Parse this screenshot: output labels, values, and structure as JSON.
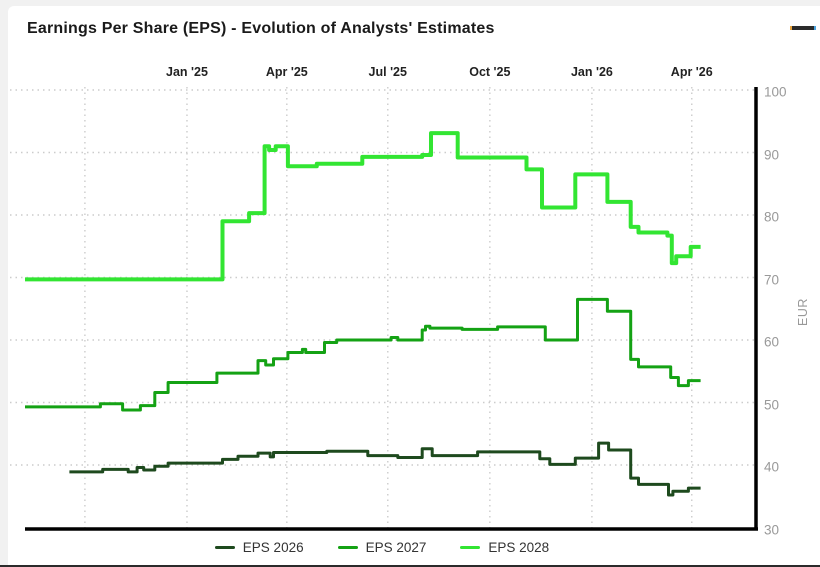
{
  "title": "Earnings Per Share (EPS) - Evolution of Analysts' Estimates",
  "menu_icon": "chart-context-menu",
  "chart_data": {
    "type": "line",
    "line_style": "step-after",
    "title": "Earnings Per Share (EPS) - Evolution of Analysts' Estimates",
    "xlabel": "",
    "ylabel": "EUR",
    "ylim": [
      30,
      100
    ],
    "grid": true,
    "legend_position": "bottom",
    "y_ticks": [
      100,
      90,
      80,
      70,
      60,
      50,
      40,
      30
    ],
    "x_start": "2024-08-08",
    "x_end": "2026-05-28",
    "x_ticks": [
      {
        "date": "2024-10-01",
        "label": ""
      },
      {
        "date": "2025-01-01",
        "label": "Jan '25"
      },
      {
        "date": "2025-04-01",
        "label": "Apr '25"
      },
      {
        "date": "2025-07-01",
        "label": "Jul '25"
      },
      {
        "date": "2025-10-01",
        "label": "Oct '25"
      },
      {
        "date": "2026-01-01",
        "label": "Jan '26"
      },
      {
        "date": "2026-04-01",
        "label": "Apr '26"
      }
    ],
    "series": [
      {
        "name": "EPS 2026",
        "color": "#1e4a1e",
        "points": [
          [
            "2024-09-17",
            38.9
          ],
          [
            "2024-10-17",
            39.3
          ],
          [
            "2024-11-09",
            38.9
          ],
          [
            "2024-11-17",
            39.6
          ],
          [
            "2024-11-23",
            39.2
          ],
          [
            "2024-12-03",
            39.8
          ],
          [
            "2024-12-15",
            40.3
          ],
          [
            "2025-02-02",
            40.9
          ],
          [
            "2025-02-16",
            41.4
          ],
          [
            "2025-03-06",
            41.9
          ],
          [
            "2025-03-17",
            41.3
          ],
          [
            "2025-03-20",
            42.0
          ],
          [
            "2025-05-07",
            42.2
          ],
          [
            "2025-06-13",
            41.5
          ],
          [
            "2025-07-10",
            41.2
          ],
          [
            "2025-08-01",
            42.6
          ],
          [
            "2025-08-10",
            41.5
          ],
          [
            "2025-09-20",
            42.1
          ],
          [
            "2025-11-15",
            41.0
          ],
          [
            "2025-11-24",
            40.1
          ],
          [
            "2025-12-17",
            41.1
          ],
          [
            "2026-01-07",
            43.5
          ],
          [
            "2026-01-16",
            42.4
          ],
          [
            "2026-02-05",
            37.9
          ],
          [
            "2026-02-12",
            36.9
          ],
          [
            "2026-03-11",
            35.2
          ],
          [
            "2026-03-15",
            35.8
          ],
          [
            "2026-03-29",
            36.3
          ],
          [
            "2026-04-09",
            36.3
          ]
        ]
      },
      {
        "name": "EPS 2027",
        "color": "#14a214",
        "points": [
          [
            "2024-08-08",
            49.3
          ],
          [
            "2024-10-15",
            49.8
          ],
          [
            "2024-11-04",
            48.8
          ],
          [
            "2024-11-20",
            49.5
          ],
          [
            "2024-12-03",
            51.6
          ],
          [
            "2024-12-15",
            53.2
          ],
          [
            "2025-01-28",
            54.7
          ],
          [
            "2025-03-06",
            56.7
          ],
          [
            "2025-03-13",
            56.0
          ],
          [
            "2025-03-20",
            57.0
          ],
          [
            "2025-04-02",
            58.0
          ],
          [
            "2025-04-15",
            58.5
          ],
          [
            "2025-04-18",
            58.0
          ],
          [
            "2025-05-05",
            59.6
          ],
          [
            "2025-05-16",
            60.0
          ],
          [
            "2025-07-04",
            60.4
          ],
          [
            "2025-07-10",
            60.0
          ],
          [
            "2025-08-01",
            61.6
          ],
          [
            "2025-08-04",
            62.2
          ],
          [
            "2025-08-08",
            61.9
          ],
          [
            "2025-09-06",
            61.7
          ],
          [
            "2025-10-08",
            62.1
          ],
          [
            "2025-11-20",
            60.0
          ],
          [
            "2025-12-19",
            66.5
          ],
          [
            "2026-01-15",
            64.6
          ],
          [
            "2026-02-05",
            56.9
          ],
          [
            "2026-02-12",
            55.7
          ],
          [
            "2026-03-13",
            54.0
          ],
          [
            "2026-03-20",
            52.7
          ],
          [
            "2026-03-29",
            53.5
          ],
          [
            "2026-04-09",
            53.5
          ]
        ]
      },
      {
        "name": "EPS 2028",
        "color": "#32e532",
        "points": [
          [
            "2024-08-08",
            69.7
          ],
          [
            "2025-02-02",
            79.0
          ],
          [
            "2025-02-26",
            80.3
          ],
          [
            "2025-03-12",
            91.0
          ],
          [
            "2025-03-16",
            90.4
          ],
          [
            "2025-03-22",
            91.0
          ],
          [
            "2025-04-02",
            87.8
          ],
          [
            "2025-04-28",
            88.2
          ],
          [
            "2025-06-08",
            89.3
          ],
          [
            "2025-08-01",
            89.6
          ],
          [
            "2025-08-09",
            93.1
          ],
          [
            "2025-09-02",
            89.2
          ],
          [
            "2025-11-03",
            87.3
          ],
          [
            "2025-11-17",
            81.2
          ],
          [
            "2025-12-17",
            86.5
          ],
          [
            "2026-01-15",
            82.1
          ],
          [
            "2026-02-05",
            78.1
          ],
          [
            "2026-02-12",
            77.2
          ],
          [
            "2026-03-10",
            76.7
          ],
          [
            "2026-03-14",
            72.3
          ],
          [
            "2026-03-18",
            73.4
          ],
          [
            "2026-03-31",
            74.9
          ],
          [
            "2026-04-09",
            74.9
          ]
        ]
      }
    ]
  },
  "style": {
    "grid_color": "#cccccc",
    "axis_color": "#000000",
    "x_label_color": "#222222",
    "y_label_color": "#999999"
  }
}
